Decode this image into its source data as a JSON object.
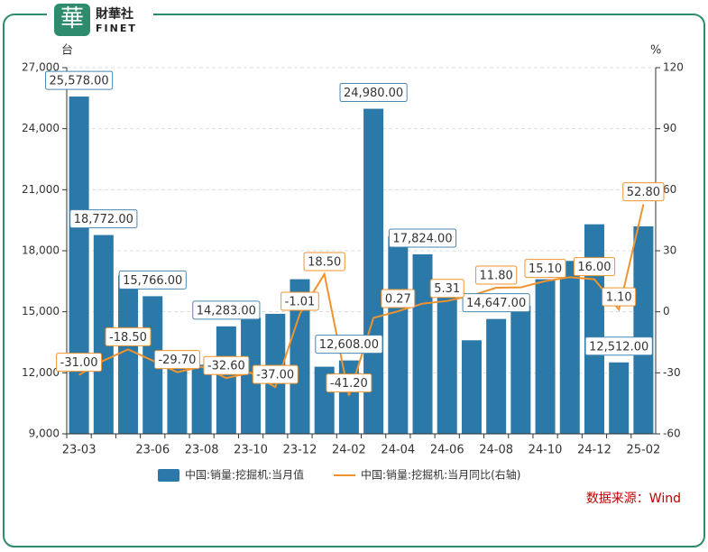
{
  "logo": {
    "mark": "華",
    "name": "財華社",
    "latin": "FINET"
  },
  "chart_data": {
    "type": "bar_line",
    "y_label": "台",
    "y2_label": "%",
    "source": "数据来源：Wind",
    "categories": [
      "23-03",
      null,
      null,
      "23-06",
      null,
      "23-08",
      null,
      "23-10",
      null,
      "23-12",
      null,
      "24-02",
      null,
      "24-04",
      null,
      "24-06",
      null,
      "24-08",
      null,
      "24-10",
      null,
      "24-12",
      null,
      "25-02"
    ],
    "series": [
      {
        "name": "中国:销量:挖掘机:当月值",
        "color": "#2b79a8",
        "type": "bar",
        "values": [
          25578,
          18772,
          16800,
          15766,
          12200,
          12400,
          14283,
          14700,
          14900,
          16600,
          12300,
          12608,
          24980,
          18700,
          17824,
          15700,
          13600,
          14647,
          15300,
          16600,
          17500,
          19300,
          12512,
          19200
        ],
        "value_labels": [
          "25,578.00",
          "18,772.00",
          null,
          "15,766.00",
          null,
          null,
          "14,283.00",
          null,
          null,
          null,
          null,
          "12,608.00",
          "24,980.00",
          null,
          "17,824.00",
          null,
          null,
          "14,647.00",
          null,
          null,
          null,
          null,
          "12,512.00",
          null
        ]
      },
      {
        "name": "中国:销量:挖掘机:当月同比(右轴)",
        "color": "#f0932f",
        "type": "line",
        "axis": "y2",
        "values": [
          -31,
          -24,
          -18.5,
          -24,
          -29.7,
          -27,
          -32.6,
          -30,
          -37,
          -1.01,
          18.5,
          -41.2,
          -3,
          0.27,
          4,
          5.31,
          8,
          11.8,
          12,
          15.1,
          17,
          16,
          1.1,
          52.8
        ],
        "value_labels": [
          "-31.00",
          null,
          "-18.50",
          null,
          "-29.70",
          null,
          "-32.60",
          null,
          "-37.00",
          "-1.01",
          "18.50",
          "-41.20",
          null,
          "0.27",
          null,
          "5.31",
          null,
          "11.80",
          null,
          "15.10",
          null,
          "16.00",
          "1.10",
          "52.80"
        ]
      }
    ],
    "ylim": [
      9000,
      27000
    ],
    "yticks": [
      {
        "value": 9000,
        "label": "9,000"
      },
      {
        "value": 12000,
        "label": "12,000"
      },
      {
        "value": 15000,
        "label": "15,000"
      },
      {
        "value": 18000,
        "label": "18,000"
      },
      {
        "value": 21000,
        "label": "21,000"
      },
      {
        "value": 24000,
        "label": "24,000"
      },
      {
        "value": 27000,
        "label": "27,000"
      }
    ],
    "y2lim": [
      -60,
      120
    ],
    "y2ticks": [
      -60,
      -30,
      0,
      30,
      60,
      90,
      120
    ],
    "grid": true
  }
}
